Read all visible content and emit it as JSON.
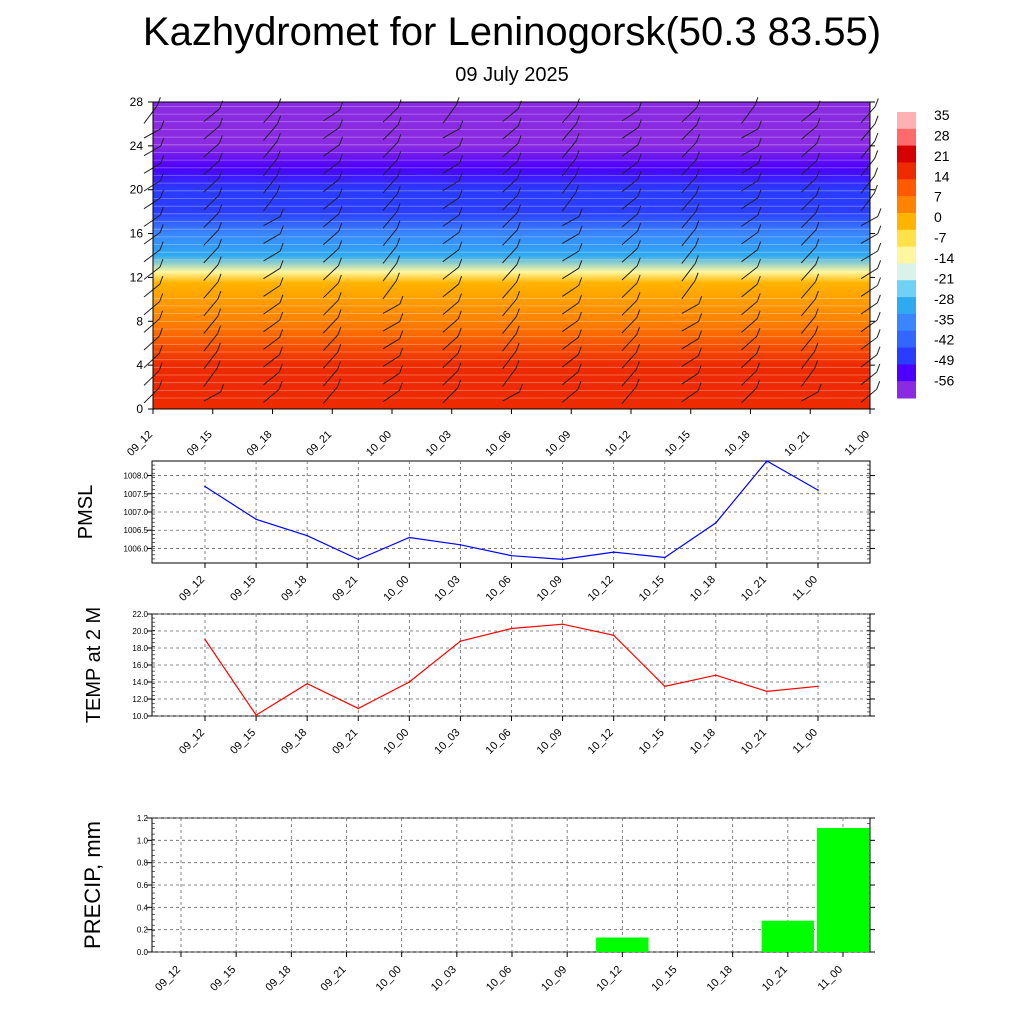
{
  "title": "Kazhydromet for Leninogorsk(50.3 83.55)",
  "subtitle": "09 July 2025",
  "time_labels": [
    "09_12",
    "09_15",
    "09_18",
    "09_21",
    "10_00",
    "10_03",
    "10_06",
    "10_09",
    "10_12",
    "10_15",
    "10_18",
    "10_21",
    "11_00"
  ],
  "colors": {
    "pmsl_line": "#0000ff",
    "temp_line": "#ff0000",
    "precip_bar": "#00ff00",
    "barb": "#222222"
  },
  "chart_data": [
    {
      "type": "heatmap",
      "name": "cross-section",
      "x": [
        "09_12",
        "09_15",
        "09_18",
        "09_21",
        "10_00",
        "10_03",
        "10_06",
        "10_09",
        "10_12",
        "10_15",
        "10_18",
        "10_21",
        "11_00"
      ],
      "ylim": [
        0,
        28
      ],
      "yticks": [
        0,
        4,
        8,
        12,
        16,
        20,
        24,
        28
      ],
      "colorbar_labels": [
        "35",
        "28",
        "21",
        "14",
        "7",
        "0",
        "-7",
        "-14",
        "-21",
        "-28",
        "-35",
        "-42",
        "-49",
        "-56"
      ],
      "color_scale": [
        "#8a2be2",
        "#4b00ff",
        "#2a3cff",
        "#3366ff",
        "#3a86ff",
        "#2eaaf0",
        "#6fd2f5",
        "#d9f2ea",
        "#fff7a0",
        "#ffe14a",
        "#ffb400",
        "#ff8200",
        "#ff5a00",
        "#ee2a00",
        "#d60000",
        "#ff6a6a",
        "#ffb0b0"
      ],
      "temperature_by_level": [
        {
          "level": 0,
          "value": 18
        },
        {
          "level": 4,
          "value": 16
        },
        {
          "level": 8,
          "value": 7
        },
        {
          "level": 11.5,
          "value": 0
        },
        {
          "level": 12.5,
          "value": -10
        },
        {
          "level": 14,
          "value": -25
        },
        {
          "level": 16,
          "value": -33
        },
        {
          "level": 18,
          "value": -42
        },
        {
          "level": 20,
          "value": -47
        },
        {
          "level": 22,
          "value": -52
        },
        {
          "level": 24,
          "value": -56
        },
        {
          "level": 28,
          "value": -56
        }
      ]
    },
    {
      "type": "line",
      "name": "PMSL",
      "ylabel": "PMSL",
      "categories": [
        "09_12",
        "09_15",
        "09_18",
        "09_21",
        "10_00",
        "10_03",
        "10_06",
        "10_09",
        "10_12",
        "10_15",
        "10_18",
        "10_21",
        "11_00"
      ],
      "values": [
        1007.7,
        1006.8,
        1006.35,
        1005.7,
        1006.3,
        1006.1,
        1005.8,
        1005.7,
        1005.9,
        1005.75,
        1006.7,
        1008.4,
        1007.6
      ],
      "ylim": [
        1005.6,
        1008.4
      ],
      "ytick_labels": [
        "1006.0",
        "1006.5",
        "1007.0",
        "1007.5",
        "1008.0"
      ]
    },
    {
      "type": "line",
      "name": "TEMP at 2 M",
      "ylabel": "TEMP at 2 M",
      "categories": [
        "09_12",
        "09_15",
        "09_18",
        "09_21",
        "10_00",
        "10_03",
        "10_06",
        "10_09",
        "10_12",
        "10_15",
        "10_18",
        "10_21",
        "11_00"
      ],
      "values": [
        19.0,
        10.1,
        13.8,
        10.9,
        14.0,
        18.8,
        20.3,
        20.8,
        19.5,
        13.5,
        14.8,
        12.9,
        13.5
      ],
      "ylim": [
        10.0,
        22.0
      ],
      "ytick_labels": [
        "10.0",
        "12.0",
        "14.0",
        "16.0",
        "18.0",
        "20.0",
        "22.0"
      ]
    },
    {
      "type": "bar",
      "name": "PRECIP, mm",
      "ylabel": "PRECIP, mm",
      "categories": [
        "09_12",
        "09_15",
        "09_18",
        "09_21",
        "10_00",
        "10_03",
        "10_06",
        "10_09",
        "10_12",
        "10_15",
        "10_18",
        "10_21",
        "11_00"
      ],
      "values": [
        0,
        0,
        0,
        0,
        0,
        0,
        0,
        0,
        0.13,
        0,
        0,
        0.28,
        1.11
      ],
      "ylim": [
        0,
        1.2
      ],
      "ytick_labels": [
        "0.0",
        "0.2",
        "0.4",
        "0.6",
        "0.8",
        "1.0",
        "1.2"
      ]
    }
  ]
}
